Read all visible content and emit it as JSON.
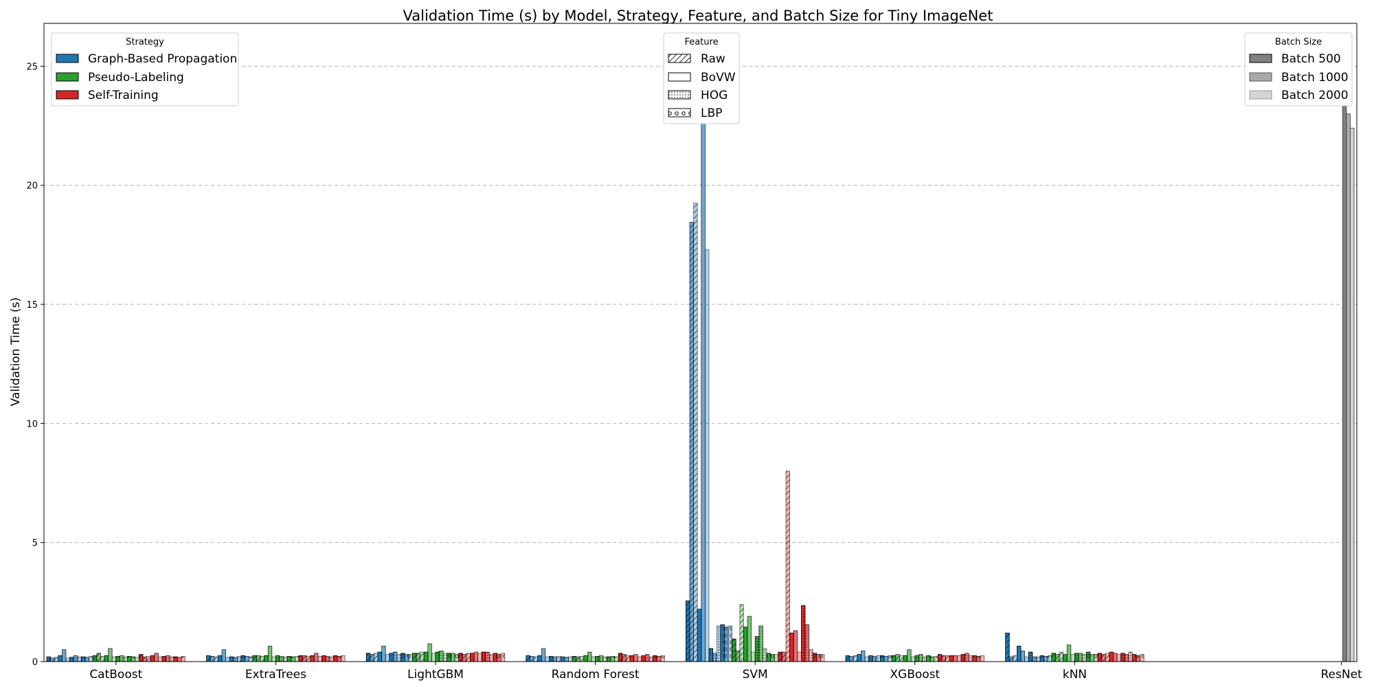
{
  "chart_data": {
    "type": "bar",
    "title": "Validation Time (s) by Model, Strategy, Feature, and Batch Size for Tiny ImageNet",
    "xlabel": "",
    "ylabel": "Validation Time (s)",
    "ylim": [
      0,
      26.8
    ],
    "yticks": [
      0,
      5,
      10,
      15,
      20,
      25
    ],
    "grid": "y-dashed",
    "categories": [
      "CatBoost",
      "ExtraTrees",
      "LightGBM",
      "Random Forest",
      "SVM",
      "XGBoost",
      "kNN",
      "ResNet"
    ],
    "strategies": [
      {
        "name": "Graph-Based Propagation",
        "color": "#1f77b4"
      },
      {
        "name": "Pseudo-Labeling",
        "color": "#2ca02c"
      },
      {
        "name": "Self-Training",
        "color": "#d62728"
      }
    ],
    "features": [
      "Raw",
      "BoVW",
      "HOG",
      "LBP"
    ],
    "batch_sizes": [
      {
        "name": "Batch 500",
        "alpha": 1.0
      },
      {
        "name": "Batch 1000",
        "alpha": 0.65
      },
      {
        "name": "Batch 2000",
        "alpha": 0.35
      }
    ],
    "series_order": "strategy > feature > batch",
    "values": {
      "CatBoost": [
        [
          [
            0.2,
            0.15,
            0.18
          ],
          [
            0.25,
            0.5,
            0.15
          ],
          [
            0.18,
            0.25,
            0.2
          ],
          [
            0.2,
            0.18,
            0.22
          ]
        ],
        [
          [
            0.25,
            0.35,
            0.22
          ],
          [
            0.25,
            0.55,
            0.2
          ],
          [
            0.22,
            0.25,
            0.2
          ],
          [
            0.22,
            0.2,
            0.18
          ]
        ],
        [
          [
            0.3,
            0.2,
            0.22
          ],
          [
            0.25,
            0.35,
            0.2
          ],
          [
            0.22,
            0.25,
            0.2
          ],
          [
            0.2,
            0.18,
            0.22
          ]
        ]
      ],
      "ExtraTrees": [
        [
          [
            0.25,
            0.22,
            0.2
          ],
          [
            0.25,
            0.5,
            0.18
          ],
          [
            0.2,
            0.18,
            0.22
          ],
          [
            0.25,
            0.22,
            0.2
          ]
        ],
        [
          [
            0.25,
            0.25,
            0.22
          ],
          [
            0.25,
            0.65,
            0.2
          ],
          [
            0.25,
            0.22,
            0.2
          ],
          [
            0.22,
            0.2,
            0.22
          ]
        ],
        [
          [
            0.25,
            0.25,
            0.22
          ],
          [
            0.25,
            0.35,
            0.22
          ],
          [
            0.25,
            0.22,
            0.2
          ],
          [
            0.25,
            0.22,
            0.25
          ]
        ]
      ],
      "LightGBM": [
        [
          [
            0.35,
            0.3,
            0.35
          ],
          [
            0.4,
            0.65,
            0.3
          ],
          [
            0.35,
            0.4,
            0.3
          ],
          [
            0.35,
            0.3,
            0.3
          ]
        ],
        [
          [
            0.35,
            0.35,
            0.4
          ],
          [
            0.4,
            0.75,
            0.35
          ],
          [
            0.4,
            0.45,
            0.35
          ],
          [
            0.35,
            0.35,
            0.3
          ]
        ],
        [
          [
            0.35,
            0.3,
            0.35
          ],
          [
            0.35,
            0.4,
            0.35
          ],
          [
            0.4,
            0.4,
            0.3
          ],
          [
            0.35,
            0.3,
            0.35
          ]
        ]
      ],
      "Random Forest": [
        [
          [
            0.25,
            0.22,
            0.2
          ],
          [
            0.25,
            0.55,
            0.2
          ],
          [
            0.22,
            0.2,
            0.22
          ],
          [
            0.2,
            0.18,
            0.2
          ]
        ],
        [
          [
            0.22,
            0.2,
            0.22
          ],
          [
            0.25,
            0.4,
            0.2
          ],
          [
            0.22,
            0.25,
            0.2
          ],
          [
            0.2,
            0.22,
            0.2
          ]
        ],
        [
          [
            0.35,
            0.3,
            0.25
          ],
          [
            0.25,
            0.3,
            0.2
          ],
          [
            0.25,
            0.3,
            0.2
          ],
          [
            0.25,
            0.22,
            0.25
          ]
        ]
      ],
      "SVM": [
        [
          [
            2.55,
            18.45,
            19.25
          ],
          [
            2.2,
            24.3,
            17.3
          ],
          [
            0.55,
            0.35,
            1.5
          ],
          [
            1.55,
            1.45,
            1.5
          ]
        ],
        [
          [
            0.95,
            0.45,
            2.4
          ],
          [
            1.45,
            1.9,
            0.4
          ],
          [
            1.05,
            1.5,
            0.55
          ],
          [
            0.35,
            0.3,
            0.3
          ]
        ],
        [
          [
            0.4,
            0.4,
            8.0
          ],
          [
            1.2,
            1.3,
            0.4
          ],
          [
            2.35,
            1.55,
            0.5
          ],
          [
            0.35,
            0.3,
            0.3
          ]
        ]
      ],
      "XGBoost": [
        [
          [
            0.25,
            0.22,
            0.25
          ],
          [
            0.3,
            0.45,
            0.2
          ],
          [
            0.25,
            0.22,
            0.25
          ],
          [
            0.25,
            0.22,
            0.25
          ]
        ],
        [
          [
            0.25,
            0.3,
            0.25
          ],
          [
            0.25,
            0.5,
            0.2
          ],
          [
            0.25,
            0.3,
            0.2
          ],
          [
            0.25,
            0.2,
            0.22
          ]
        ],
        [
          [
            0.3,
            0.25,
            0.25
          ],
          [
            0.25,
            0.25,
            0.25
          ],
          [
            0.3,
            0.35,
            0.25
          ],
          [
            0.25,
            0.22,
            0.25
          ]
        ]
      ],
      "kNN": [
        [
          [
            1.2,
            0.2,
            0.25
          ],
          [
            0.65,
            0.45,
            0.2
          ],
          [
            0.4,
            0.2,
            0.2
          ],
          [
            0.25,
            0.22,
            0.25
          ]
        ],
        [
          [
            0.35,
            0.3,
            0.4
          ],
          [
            0.3,
            0.7,
            0.3
          ],
          [
            0.35,
            0.35,
            0.3
          ],
          [
            0.4,
            0.3,
            0.3
          ]
        ],
        [
          [
            0.35,
            0.3,
            0.35
          ],
          [
            0.4,
            0.35,
            0.3
          ],
          [
            0.35,
            0.3,
            0.4
          ],
          [
            0.3,
            0.25,
            0.3
          ]
        ]
      ],
      "ResNet": {
        "Batch 500": 24.7,
        "Batch 1000": 23.0,
        "Batch 2000": 22.4
      }
    }
  },
  "legends": {
    "strategy": {
      "title": "Strategy",
      "items": [
        "Graph-Based Propagation",
        "Pseudo-Labeling",
        "Self-Training"
      ]
    },
    "feature": {
      "title": "Feature",
      "items": [
        "Raw",
        "BoVW",
        "HOG",
        "LBP"
      ]
    },
    "batch": {
      "title": "Batch Size",
      "items": [
        "Batch 500",
        "Batch 1000",
        "Batch 2000"
      ]
    }
  }
}
